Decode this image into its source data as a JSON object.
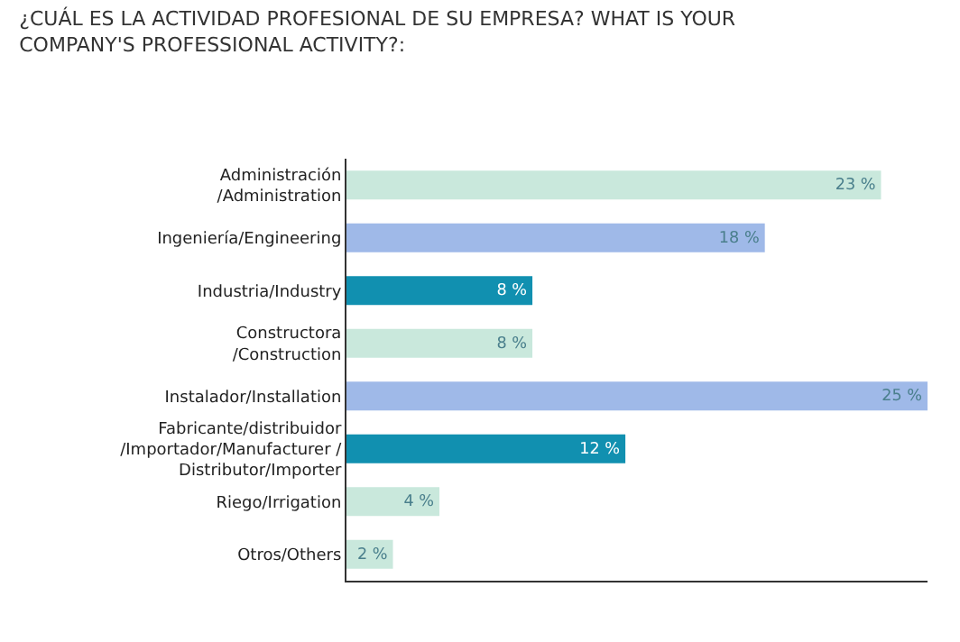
{
  "chart_data": {
    "type": "bar",
    "orientation": "horizontal",
    "title": "¿CUÁL ES LA ACTIVIDAD PROFESIONAL DE SU EMPRESA? WHAT IS YOUR\nCOMPANY'S PROFESSIONAL ACTIVITY?:",
    "categories": [
      "Administración\n/Administration",
      "Ingeniería/Engineering",
      "Industria/Industry",
      "Constructora\n/Construction",
      "Instalador/Installation",
      "Fabricante/distribuidor\n/Importador/Manufacturer /\nDistributor/Importer",
      "Riego/Irrigation",
      "Otros/Others"
    ],
    "values": [
      23,
      18,
      8,
      8,
      25,
      12,
      4,
      2
    ],
    "colors": [
      "#c9e8dc",
      "#9fb9e8",
      "#1190b0",
      "#c9e8dc",
      "#9fb9e8",
      "#1190b0",
      "#c9e8dc",
      "#c9e8dc"
    ],
    "value_labels": [
      "23 %",
      "18 %",
      "8 %",
      "8 %",
      "25 %",
      "12 %",
      "4 %",
      "2 %"
    ],
    "xlim": [
      0,
      25
    ],
    "tick_labels": false
  }
}
